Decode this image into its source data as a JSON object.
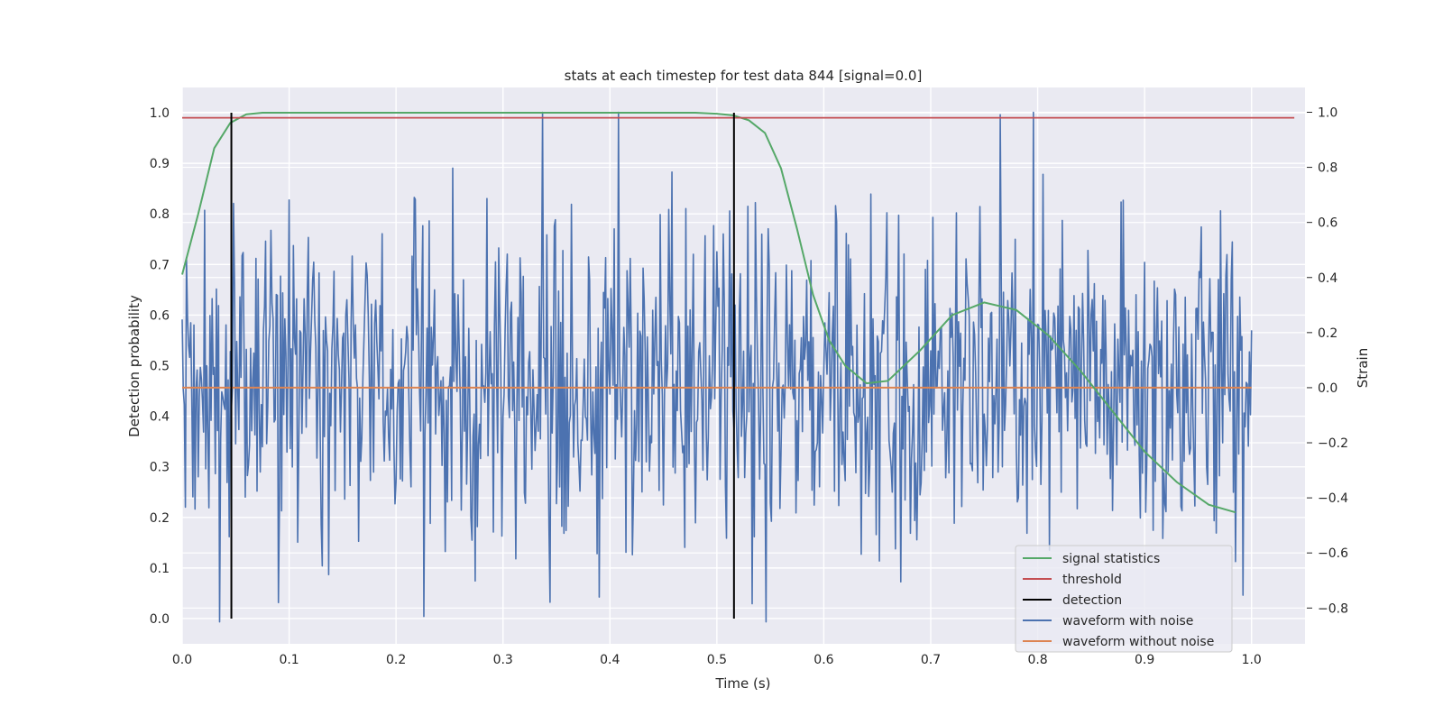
{
  "chart_data": {
    "type": "line",
    "title": "stats at each timestep for test data 844 [signal=0.0]",
    "xlabel": "Time (s)",
    "ylabel_left": "Detection probability",
    "ylabel_right": "Strain",
    "xlim": [
      0.0,
      1.05
    ],
    "ylim_left": [
      -0.05,
      1.05
    ],
    "ylim_right": [
      -0.93,
      1.09
    ],
    "x_ticks": [
      "0.0",
      "0.1",
      "0.2",
      "0.3",
      "0.4",
      "0.5",
      "0.6",
      "0.7",
      "0.8",
      "0.9",
      "1.0"
    ],
    "x_tick_values": [
      0.0,
      0.1,
      0.2,
      0.3,
      0.4,
      0.5,
      0.6,
      0.7,
      0.8,
      0.9,
      1.0
    ],
    "y_left_ticks": [
      "0.0",
      "0.1",
      "0.2",
      "0.3",
      "0.4",
      "0.5",
      "0.6",
      "0.7",
      "0.8",
      "0.9",
      "1.0"
    ],
    "y_left_tick_values": [
      0.0,
      0.1,
      0.2,
      0.3,
      0.4,
      0.5,
      0.6,
      0.7,
      0.8,
      0.9,
      1.0
    ],
    "y_right_ticks": [
      "1.0",
      "0.8",
      "0.6",
      "0.4",
      "0.2",
      "0.0",
      "−0.2",
      "−0.4",
      "−0.6",
      "−0.8"
    ],
    "y_right_tick_values": [
      1.0,
      0.8,
      0.6,
      0.4,
      0.2,
      0.0,
      -0.2,
      -0.4,
      -0.6,
      -0.8
    ],
    "grid": true,
    "legend_position": "lower-right",
    "series": [
      {
        "name": "signal statistics",
        "axis": "left",
        "color": "#55a868",
        "x": [
          0.0,
          0.015,
          0.03,
          0.045,
          0.06,
          0.075,
          0.09,
          0.2,
          0.3,
          0.4,
          0.48,
          0.5,
          0.515,
          0.53,
          0.545,
          0.56,
          0.575,
          0.59,
          0.605,
          0.62,
          0.64,
          0.66,
          0.69,
          0.72,
          0.75,
          0.78,
          0.81,
          0.84,
          0.87,
          0.9,
          0.93,
          0.96,
          0.985
        ],
        "y": [
          0.68,
          0.8,
          0.93,
          0.98,
          0.997,
          1.0,
          1.0,
          1.0,
          1.0,
          1.0,
          1.0,
          0.998,
          0.995,
          0.985,
          0.96,
          0.89,
          0.77,
          0.64,
          0.55,
          0.5,
          0.465,
          0.47,
          0.53,
          0.6,
          0.625,
          0.61,
          0.56,
          0.49,
          0.41,
          0.33,
          0.27,
          0.225,
          0.21
        ]
      },
      {
        "name": "threshold",
        "axis": "left",
        "color": "#c44e52",
        "x": [
          0.0,
          1.04
        ],
        "y": [
          0.99,
          0.99
        ]
      },
      {
        "name": "detection",
        "axis": "left",
        "color": "#000000",
        "segments": [
          {
            "x": 0.046,
            "y0": 0.0,
            "y1": 1.0
          },
          {
            "x": 0.516,
            "y0": 0.0,
            "y1": 1.0
          }
        ]
      },
      {
        "name": "waveform with noise",
        "axis": "right",
        "color": "#4c72b0",
        "x_start": 0.0,
        "x_end": 1.0,
        "amplitude_range": [
          -0.85,
          1.0
        ],
        "peaks": [
          {
            "x": 0.408,
            "y": 1.0
          },
          {
            "x": 0.796,
            "y": 1.0
          },
          {
            "x": 0.546,
            "y": -0.85
          },
          {
            "x": 0.09,
            "y": -0.78
          },
          {
            "x": 0.39,
            "y": -0.76
          }
        ]
      },
      {
        "name": "waveform without noise",
        "axis": "right",
        "color": "#dd8452",
        "x": [
          0.0,
          1.0
        ],
        "y": [
          0.0,
          0.0
        ]
      }
    ]
  }
}
